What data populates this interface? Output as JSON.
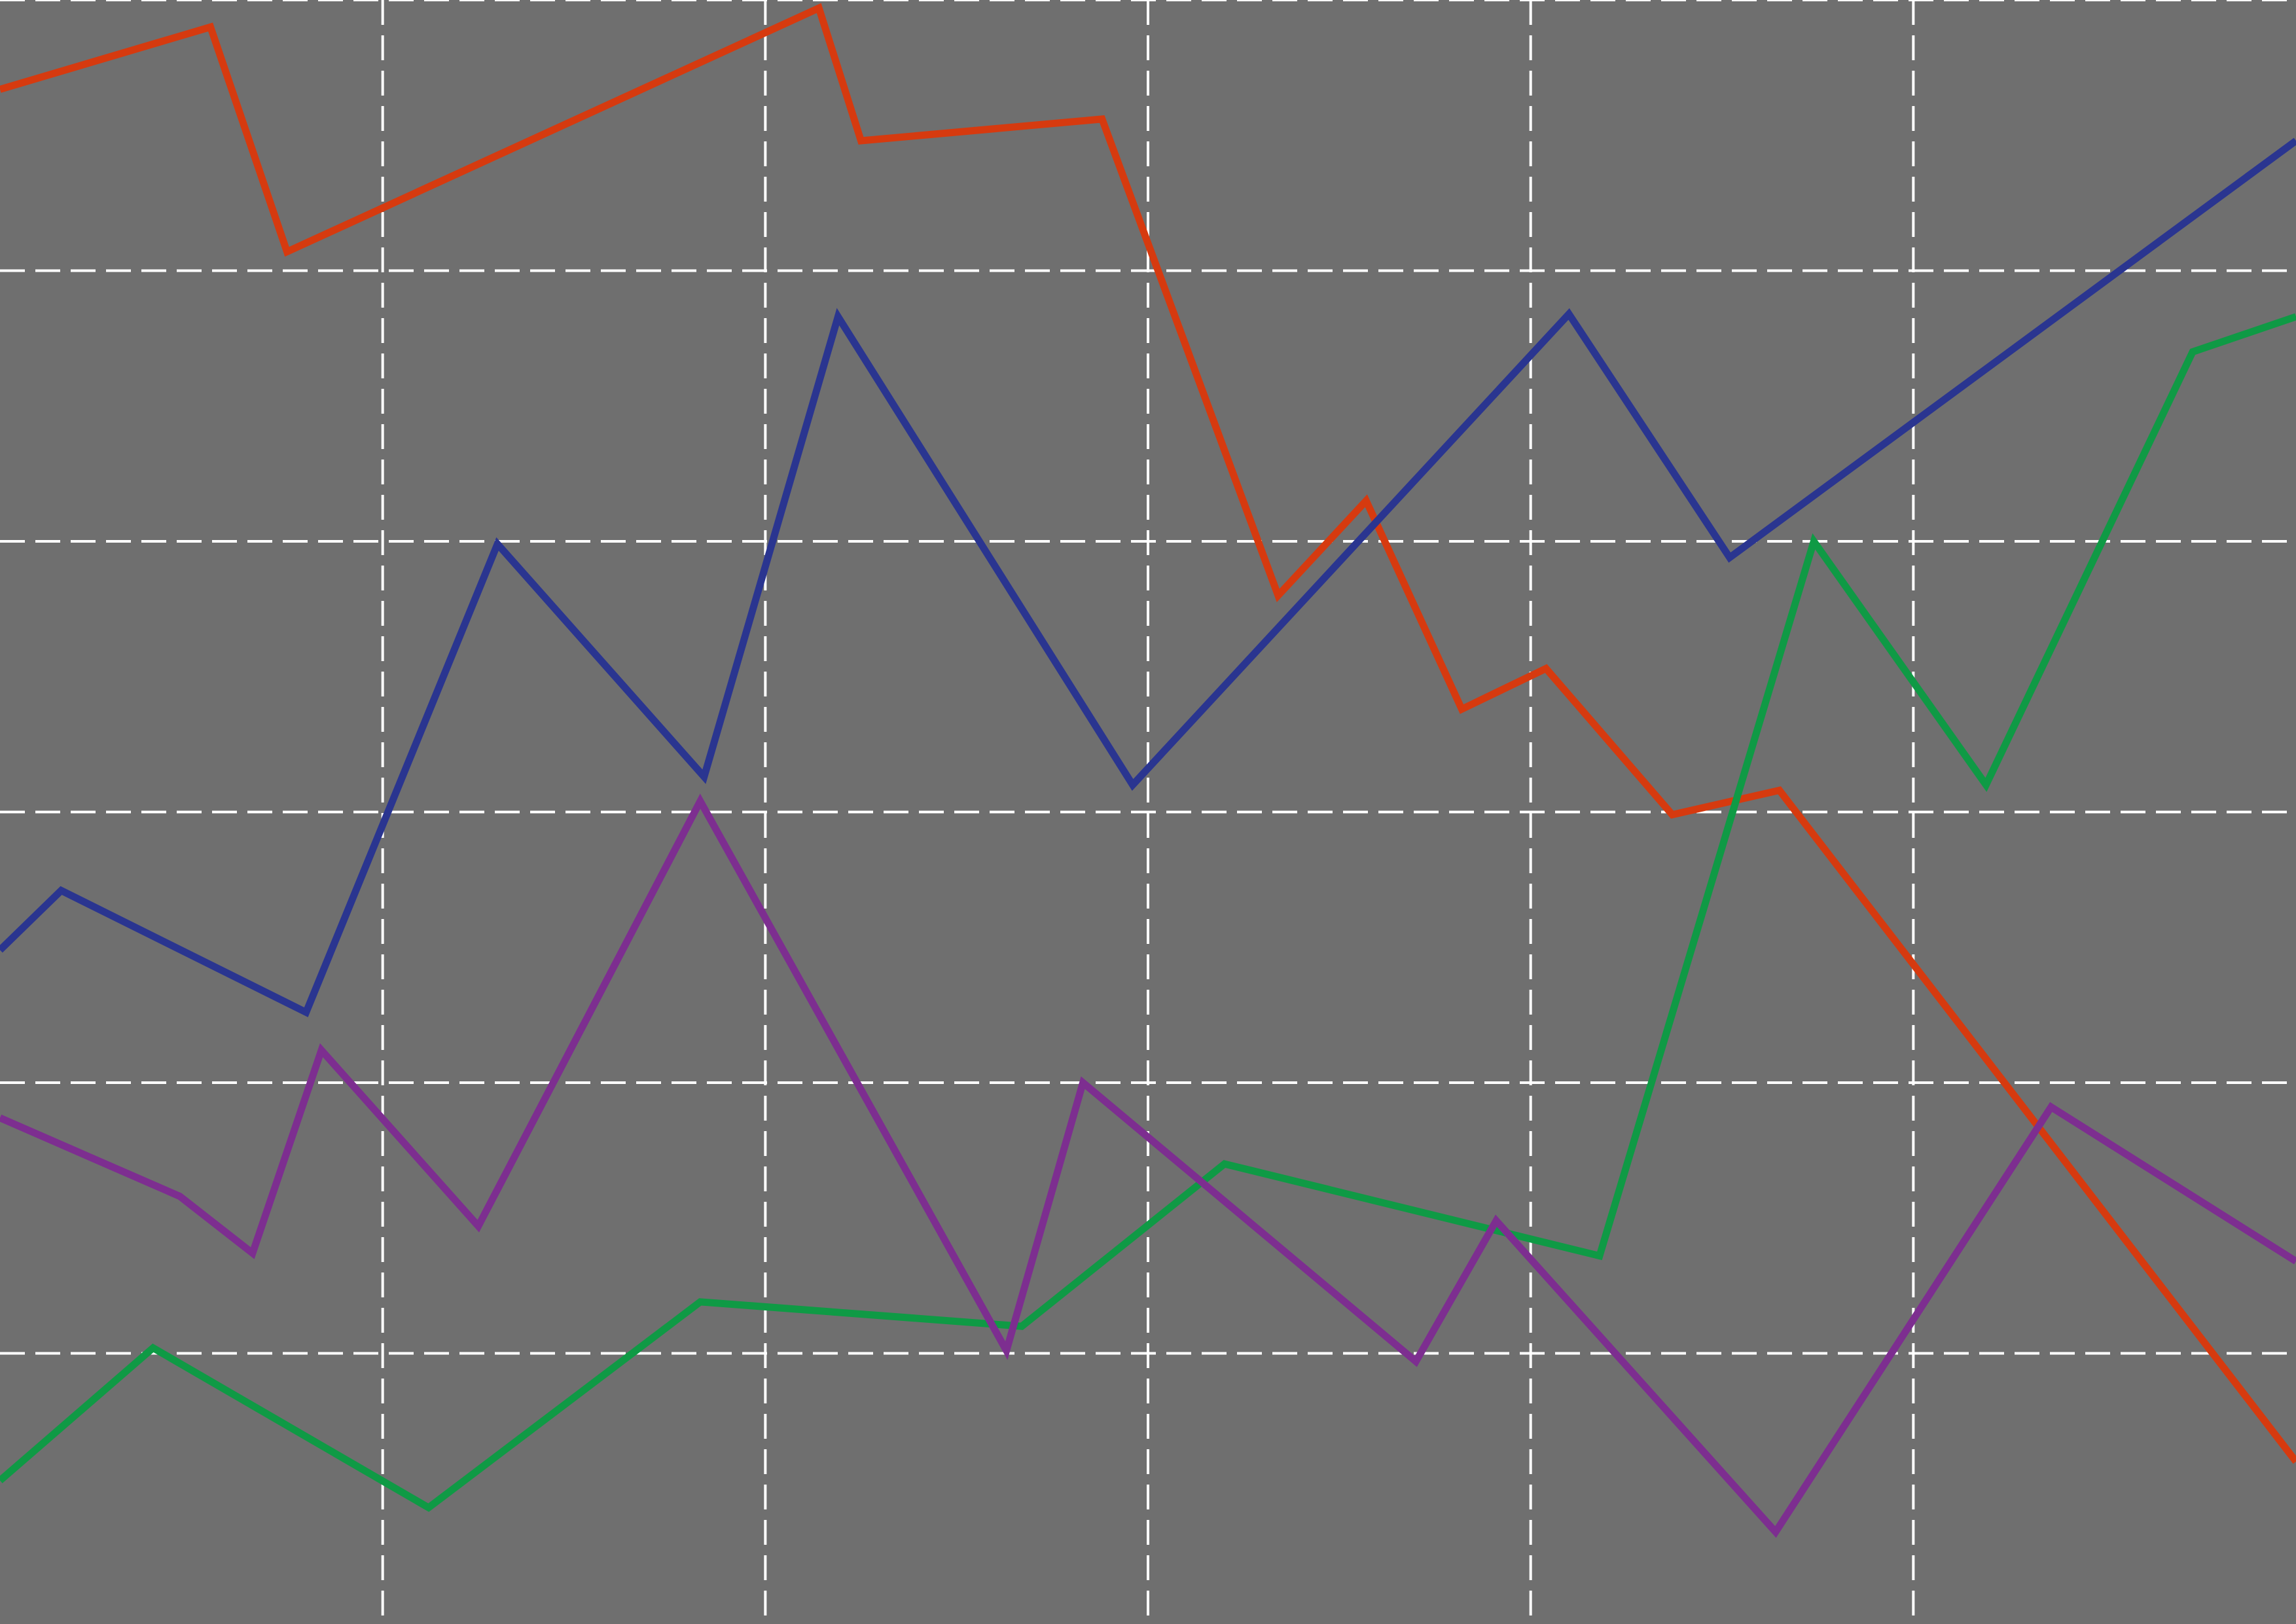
{
  "chart_data": {
    "type": "line",
    "title": "",
    "xlabel": "",
    "ylabel": "",
    "xlim": [
      0,
      30
    ],
    "ylim": [
      0,
      6
    ],
    "grid": true,
    "legend": "none",
    "background_color": "#6f6f6f",
    "grid_color": "#ffffff",
    "series": [
      {
        "color": "#d63a0f",
        "points": [
          [
            0,
            5.67
          ],
          [
            2.75,
            5.9
          ],
          [
            3.75,
            5.07
          ],
          [
            10.7,
            5.97
          ],
          [
            11.25,
            5.48
          ],
          [
            14.4,
            5.56
          ],
          [
            16.7,
            3.8
          ],
          [
            17.85,
            4.15
          ],
          [
            19.1,
            3.38
          ],
          [
            20.2,
            3.53
          ],
          [
            21.85,
            2.99
          ],
          [
            23.25,
            3.08
          ],
          [
            30,
            0.6
          ]
        ]
      },
      {
        "color": "#2a3590",
        "points": [
          [
            0,
            2.49
          ],
          [
            0.8,
            2.71
          ],
          [
            4.0,
            2.26
          ],
          [
            6.5,
            3.99
          ],
          [
            9.2,
            3.13
          ],
          [
            10.95,
            4.83
          ],
          [
            14.8,
            3.1
          ],
          [
            20.5,
            4.84
          ],
          [
            22.6,
            3.94
          ],
          [
            30,
            5.48
          ]
        ]
      },
      {
        "color": "#0f9a45",
        "points": [
          [
            0,
            0.53
          ],
          [
            2.0,
            1.02
          ],
          [
            5.6,
            0.43
          ],
          [
            9.15,
            1.19
          ],
          [
            13.35,
            1.1
          ],
          [
            16.0,
            1.7
          ],
          [
            20.9,
            1.36
          ],
          [
            23.7,
            4.0
          ],
          [
            25.95,
            3.1
          ],
          [
            28.65,
            4.7
          ],
          [
            30,
            4.83
          ]
        ]
      },
      {
        "color": "#7d2e90",
        "points": [
          [
            0,
            1.87
          ],
          [
            2.35,
            1.58
          ],
          [
            3.3,
            1.37
          ],
          [
            4.2,
            2.12
          ],
          [
            6.25,
            1.47
          ],
          [
            9.15,
            3.04
          ],
          [
            13.15,
            1.01
          ],
          [
            14.15,
            2.0
          ],
          [
            18.5,
            0.97
          ],
          [
            19.55,
            1.49
          ],
          [
            23.2,
            0.34
          ],
          [
            26.8,
            1.91
          ],
          [
            30,
            1.34
          ]
        ]
      }
    ]
  }
}
